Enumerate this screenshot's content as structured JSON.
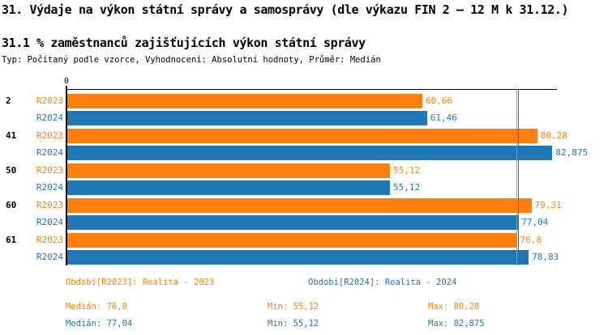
{
  "title": "31. Výdaje na výkon státní správy a samosprávy (dle výkazu FIN 2 – 12 M k 31.12.)",
  "subtitle": "31.1 % zaměstnanců zajišťujících výkon státní správy",
  "meta_line": "Typ: Počítaný podle vzorce, Vyhodnocení: Absolutní hodnoty, Průměr: Medián",
  "colors": {
    "r2023": "#ff7f0e",
    "r2024": "#1f77b4",
    "axis": "#000000",
    "background": "#ffffff"
  },
  "chart_data": {
    "type": "bar",
    "orientation": "horizontal",
    "title": "31.1 % zaměstnanců zajišťujících výkon státní správy",
    "categories": [
      "2",
      "41",
      "50",
      "60",
      "61"
    ],
    "series": [
      {
        "name": "R2023",
        "row_label": "R2023",
        "period_label": "Období[R2023]: Realita - 2023",
        "color": "#ff7f0e",
        "values": [
          60.66,
          80.28,
          55.12,
          79.31,
          76.8
        ],
        "value_labels": [
          "60,66",
          "80,28",
          "55,12",
          "79,31",
          "76,8"
        ],
        "median": 76.8,
        "min": 55.12,
        "max": 80.28
      },
      {
        "name": "R2024",
        "row_label": "R2024",
        "period_label": "Období[R2024]: Realita - 2024",
        "color": "#1f77b4",
        "values": [
          61.46,
          82.875,
          55.12,
          77.04,
          78.83
        ],
        "value_labels": [
          "61,46",
          "82,875",
          "55,12",
          "77,04",
          "78,83"
        ],
        "median": 77.04,
        "min": 55.12,
        "max": 82.875
      }
    ],
    "xlim": [
      0,
      83.9
    ],
    "x_ticks": [
      {
        "value": 0,
        "label": "0"
      }
    ],
    "median_lines": true,
    "grid": false,
    "legend_position": "bottom"
  },
  "stats": {
    "rows": [
      {
        "series": "R2023",
        "color": "#ff7f0e",
        "median_text": "Medián: 76,8",
        "min_text": "Min: 55,12",
        "max_text": "Max: 80,28"
      },
      {
        "series": "R2024",
        "color": "#1f77b4",
        "median_text": "Medián: 77,04",
        "min_text": "Min: 55,12",
        "max_text": "Max: 82,875"
      }
    ]
  }
}
